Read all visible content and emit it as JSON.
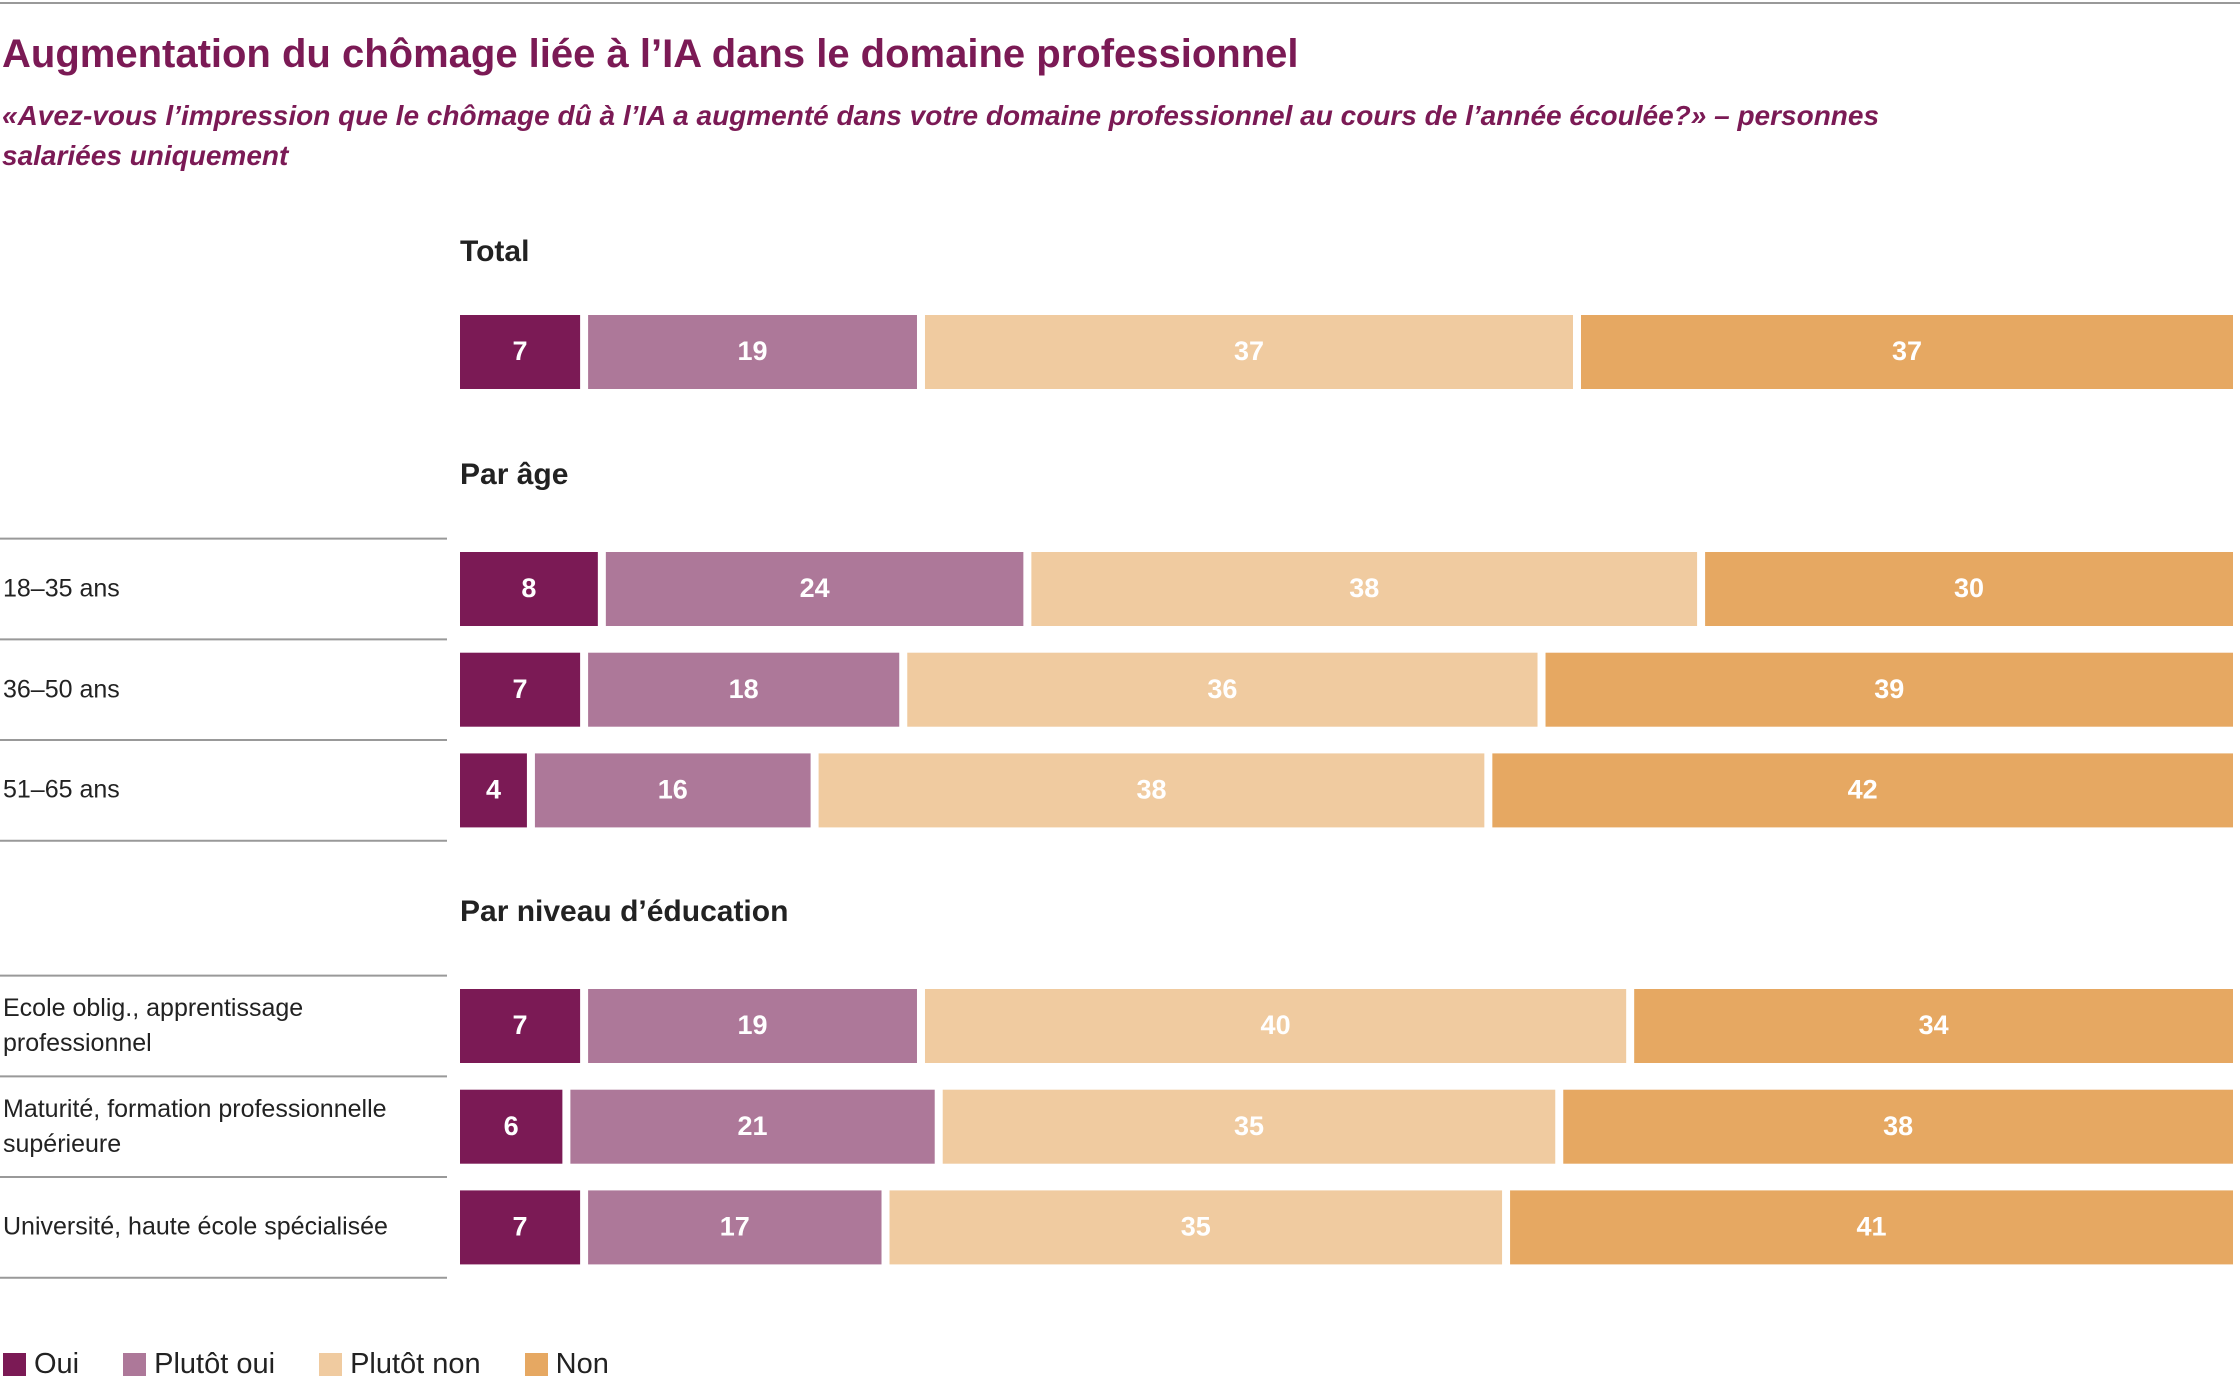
{
  "chart_data": {
    "type": "stacked-bar",
    "title": "Augmentation du chômage liée à l’IA dans le domaine professionnel",
    "subtitle": "«Avez-vous l’impression que le chômage dû à l’IA a augmenté dans votre domaine professionnel au cours de l’année écoulée?» – personnes salariées uniquement",
    "groups": [
      {
        "title": "Total",
        "categories": [
          null
        ]
      },
      {
        "title": "Par âge",
        "categories": [
          "18–35 ans",
          "36–50 ans",
          "51–65 ans"
        ]
      },
      {
        "title": "Par niveau d’éducation",
        "categories": [
          "Ecole oblig., apprentissage professionnel",
          "Maturité, formation professionnelle supérieure",
          "Université, haute école spécialisée"
        ]
      }
    ],
    "xlim": [
      0,
      100
    ],
    "series": [
      {
        "name": "Oui",
        "color": "#7b1a55",
        "values": [
          7,
          8,
          7,
          4,
          7,
          6,
          7
        ]
      },
      {
        "name": "Plutôt oui",
        "color": "#ad7899",
        "values": [
          19,
          24,
          18,
          16,
          19,
          21,
          17
        ]
      },
      {
        "name": "Plutôt non",
        "color": "#f0cba0",
        "values": [
          37,
          38,
          36,
          38,
          40,
          35,
          35
        ]
      },
      {
        "name": "Non",
        "color": "#e6a862",
        "values": [
          37,
          30,
          39,
          42,
          34,
          38,
          41
        ]
      }
    ]
  }
}
